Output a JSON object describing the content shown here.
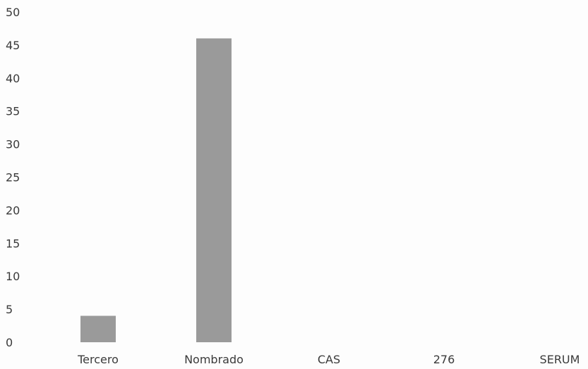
{
  "chart_data": {
    "type": "bar",
    "title": "",
    "xlabel": "",
    "ylabel": "",
    "categories": [
      "Tercero",
      "Nombrado",
      "CAS",
      "276",
      "SERUM"
    ],
    "values": [
      4,
      46,
      0,
      0,
      0
    ],
    "ylim": [
      0,
      50
    ],
    "yticks": [
      0,
      5,
      10,
      15,
      20,
      25,
      30,
      35,
      40,
      45,
      50
    ],
    "ytick_labels": [
      "0",
      "5",
      "10",
      "15",
      "20",
      "25",
      "30",
      "35",
      "40",
      "45",
      "50"
    ],
    "grid": false,
    "legend": "none",
    "colors": {
      "bar": "#9a9a9a",
      "text": "#3a3a3a"
    }
  }
}
